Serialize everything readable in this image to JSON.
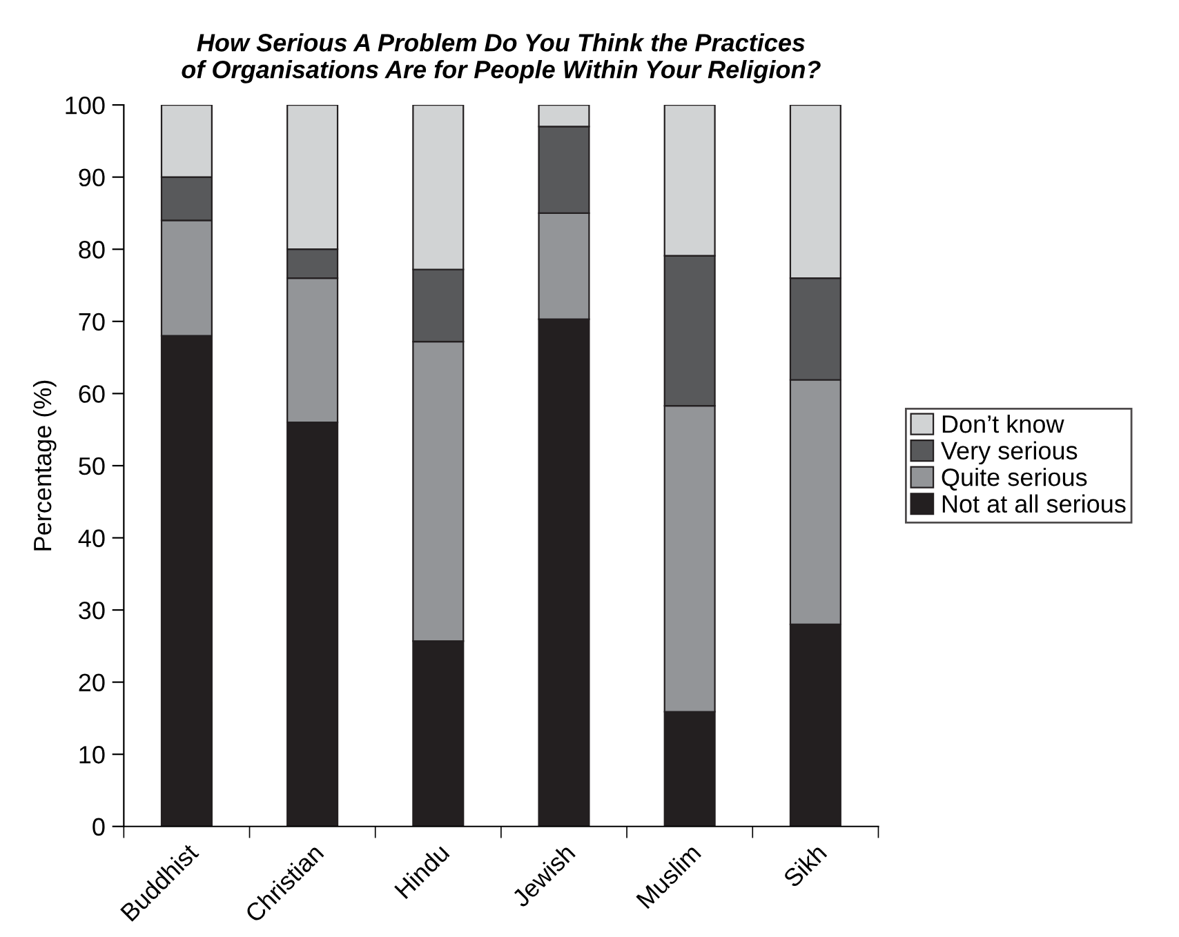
{
  "chart_data": {
    "type": "bar",
    "stacked": true,
    "title": "How Serious A Problem Do You Think the Practices\nof Organisations Are for People Within Your Religion?",
    "ylabel": "Percentage (%)",
    "categories": [
      "Buddhist",
      "Christian",
      "Hindu",
      "Jewish",
      "Muslim",
      "Sikh"
    ],
    "series": [
      {
        "name": "Not at all serious",
        "color": "#231f20",
        "values": [
          68,
          56,
          25.7,
          70.3,
          15.9,
          28
        ]
      },
      {
        "name": "Quite serious",
        "color": "#939598",
        "values": [
          16,
          20,
          41.5,
          14.7,
          42.4,
          33.9
        ]
      },
      {
        "name": "Very serious",
        "color": "#58595b",
        "values": [
          6,
          4,
          10,
          12,
          20.8,
          14.1
        ]
      },
      {
        "name": "Don’t know",
        "color": "#d1d3d4",
        "values": [
          10,
          20,
          22.8,
          3,
          20.9,
          24
        ]
      }
    ],
    "ylim": [
      0,
      100
    ],
    "yticks": [
      0,
      10,
      20,
      30,
      40,
      50,
      60,
      70,
      80,
      90,
      100
    ],
    "grid": false,
    "legend": "right"
  }
}
